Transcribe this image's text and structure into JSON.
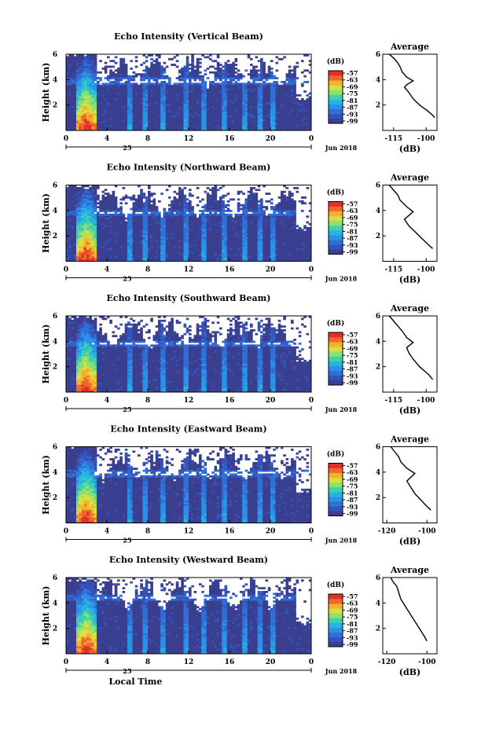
{
  "chart_data": [
    {
      "type": "heatmap",
      "title": "Echo Intensity (Vertical Beam)",
      "ylabel": "Height (km)",
      "xticks": [
        "0",
        "4",
        "8",
        "12",
        "16",
        "20",
        "0"
      ],
      "date_day": "25",
      "date_month": "Jun 2018",
      "ylim": [
        0,
        6
      ],
      "xlim": [
        0,
        24
      ],
      "yticks": [
        "2",
        "4",
        "6"
      ],
      "colorbar": {
        "unit": "(dB)",
        "ticks": [
          "-57",
          "-63",
          "-69",
          "-75",
          "-81",
          "-87",
          "-93",
          "-99"
        ]
      },
      "average": {
        "title": "Average",
        "xlabel": "(dB)",
        "xticks": [
          "-115",
          "-100"
        ],
        "xlim": [
          -120,
          -95
        ],
        "profile": [
          [
            -96,
            1.0
          ],
          [
            -97,
            1.2
          ],
          [
            -99,
            1.5
          ],
          [
            -103,
            2.0
          ],
          [
            -106,
            2.5
          ],
          [
            -108,
            3.0
          ],
          [
            -110,
            3.4
          ],
          [
            -109,
            3.6
          ],
          [
            -106,
            3.9
          ],
          [
            -109,
            4.2
          ],
          [
            -111,
            4.6
          ],
          [
            -112,
            5.0
          ],
          [
            -113,
            5.3
          ],
          [
            -115,
            5.7
          ],
          [
            -117,
            6.0
          ]
        ]
      },
      "dropout_height": 3.9
    },
    {
      "type": "heatmap",
      "title": "Echo Intensity (Northward Beam)",
      "ylabel": "Height (km)",
      "xticks": [
        "0",
        "4",
        "8",
        "12",
        "16",
        "20",
        "0"
      ],
      "date_day": "25",
      "date_month": "Jun 2018",
      "ylim": [
        0,
        6
      ],
      "xlim": [
        0,
        24
      ],
      "yticks": [
        "2",
        "4",
        "6"
      ],
      "colorbar": {
        "unit": "(dB)",
        "ticks": [
          "-57",
          "-63",
          "-69",
          "-75",
          "-81",
          "-87",
          "-93",
          "-99"
        ]
      },
      "average": {
        "title": "Average",
        "xlabel": "(dB)",
        "xticks": [
          "-115",
          "-100"
        ],
        "xlim": [
          -120,
          -95
        ],
        "profile": [
          [
            -97,
            1.0
          ],
          [
            -99,
            1.3
          ],
          [
            -102,
            1.8
          ],
          [
            -105,
            2.3
          ],
          [
            -108,
            2.8
          ],
          [
            -110,
            3.3
          ],
          [
            -108,
            3.6
          ],
          [
            -106,
            3.9
          ],
          [
            -109,
            4.3
          ],
          [
            -112,
            4.8
          ],
          [
            -113,
            5.2
          ],
          [
            -115,
            5.6
          ],
          [
            -117,
            6.0
          ]
        ]
      },
      "dropout_height": 3.85
    },
    {
      "type": "heatmap",
      "title": "Echo Intensity (Southward Beam)",
      "ylabel": "Height (km)",
      "xticks": [
        "0",
        "4",
        "8",
        "12",
        "16",
        "20",
        "0"
      ],
      "date_day": "25",
      "date_month": "Jun 2018",
      "ylim": [
        0,
        6
      ],
      "xlim": [
        0,
        24
      ],
      "yticks": [
        "2",
        "4",
        "6"
      ],
      "colorbar": {
        "unit": "(dB)",
        "ticks": [
          "-57",
          "-63",
          "-69",
          "-75",
          "-81",
          "-87",
          "-93",
          "-99"
        ]
      },
      "average": {
        "title": "Average",
        "xlabel": "(dB)",
        "xticks": [
          "-115",
          "-100"
        ],
        "xlim": [
          -120,
          -95
        ],
        "profile": [
          [
            -97,
            1.0
          ],
          [
            -99,
            1.4
          ],
          [
            -103,
            2.0
          ],
          [
            -106,
            2.6
          ],
          [
            -108,
            3.1
          ],
          [
            -109,
            3.5
          ],
          [
            -106,
            3.9
          ],
          [
            -109,
            4.3
          ],
          [
            -111,
            4.8
          ],
          [
            -113,
            5.2
          ],
          [
            -115,
            5.6
          ],
          [
            -117,
            6.0
          ]
        ]
      },
      "dropout_height": 3.85
    },
    {
      "type": "heatmap",
      "title": "Echo Intensity (Eastward Beam)",
      "ylabel": "Height (km)",
      "xticks": [
        "0",
        "4",
        "8",
        "12",
        "16",
        "20",
        "0"
      ],
      "date_day": "25",
      "date_month": "Jun 2018",
      "ylim": [
        0,
        6
      ],
      "xlim": [
        0,
        24
      ],
      "yticks": [
        "2",
        "4",
        "6"
      ],
      "colorbar": {
        "unit": "(dB)",
        "ticks": [
          "-57",
          "-63",
          "-69",
          "-75",
          "-81",
          "-87",
          "-93",
          "-99"
        ]
      },
      "average": {
        "title": "Average",
        "xlabel": "(dB)",
        "xticks": [
          "-120",
          "-100"
        ],
        "xlim": [
          -122,
          -95
        ],
        "profile": [
          [
            -98,
            1.0
          ],
          [
            -100,
            1.3
          ],
          [
            -103,
            1.8
          ],
          [
            -106,
            2.3
          ],
          [
            -108,
            2.8
          ],
          [
            -110,
            3.3
          ],
          [
            -108,
            3.6
          ],
          [
            -106,
            3.9
          ],
          [
            -110,
            4.3
          ],
          [
            -113,
            4.8
          ],
          [
            -114,
            5.2
          ],
          [
            -116,
            5.6
          ],
          [
            -118,
            6.0
          ]
        ]
      },
      "dropout_height": 3.9
    },
    {
      "type": "heatmap",
      "title": "Echo Intensity (Westward Beam)",
      "ylabel": "Height (km)",
      "xlabel": "Local Time",
      "xticks": [
        "0",
        "4",
        "8",
        "12",
        "16",
        "20",
        "0"
      ],
      "date_day": "25",
      "date_month": "Jun 2018",
      "ylim": [
        0,
        6
      ],
      "xlim": [
        0,
        24
      ],
      "yticks": [
        "2",
        "4",
        "6"
      ],
      "colorbar": {
        "unit": "(dB)",
        "ticks": [
          "-57",
          "-63",
          "-69",
          "-75",
          "-81",
          "-87",
          "-93",
          "-99"
        ]
      },
      "average": {
        "title": "Average",
        "xlabel": "(dB)",
        "xticks": [
          "-120",
          "-100"
        ],
        "xlim": [
          -122,
          -95
        ],
        "profile": [
          [
            -100,
            1.0
          ],
          [
            -101,
            1.3
          ],
          [
            -103,
            1.8
          ],
          [
            -105,
            2.3
          ],
          [
            -107,
            2.8
          ],
          [
            -109,
            3.3
          ],
          [
            -111,
            3.8
          ],
          [
            -113,
            4.3
          ],
          [
            -114,
            4.8
          ],
          [
            -115,
            5.3
          ],
          [
            -117,
            5.7
          ],
          [
            -118,
            6.0
          ]
        ]
      },
      "dropout_height": 4.4
    }
  ],
  "colors": {
    "scale": [
      "#3a3f8f",
      "#3552b8",
      "#2f6fd6",
      "#2b91e6",
      "#28b4e0",
      "#3fd0b0",
      "#8ae070",
      "#d8e040",
      "#f5b030",
      "#ef6a28",
      "#e0302a"
    ],
    "background": "#3a3f8f",
    "line": "#000000"
  }
}
